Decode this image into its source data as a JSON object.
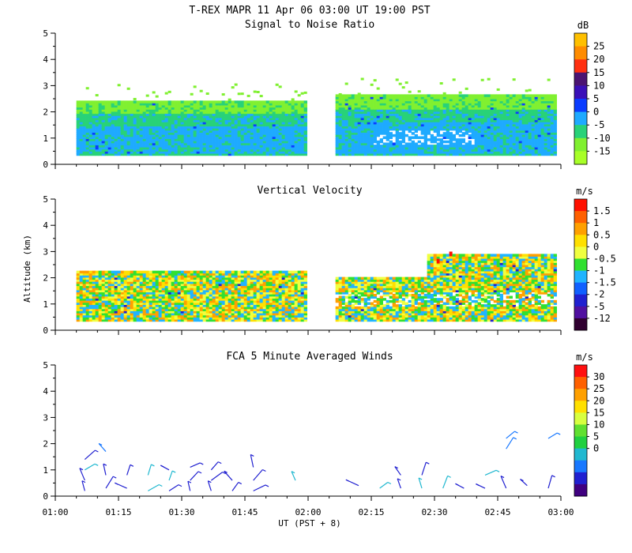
{
  "figure": {
    "title": "T-REX  MAPR 11 Apr 06  03:00 UT  19:00  PST",
    "ylabel": "Altitude (km)",
    "xlabel": "UT  (PST + 8)"
  },
  "chart_data": [
    {
      "type": "heatmap",
      "title": "Signal to Noise Ratio",
      "unit": "dB",
      "xlim": [
        "01:00",
        "03:00"
      ],
      "x_ticks": [
        "01:00",
        "01:15",
        "01:30",
        "01:45",
        "02:00",
        "02:15",
        "02:30",
        "02:45",
        "03:00"
      ],
      "ylim": [
        0,
        5
      ],
      "y_ticks": [
        0,
        1,
        2,
        3,
        4,
        5
      ],
      "colorbar_labels": [
        "25",
        "20",
        "15",
        "10",
        "5",
        "0",
        "-5",
        "-10",
        "-15"
      ],
      "colorbar_colors": [
        "#ffc000",
        "#ff8c00",
        "#ff3010",
        "#4b1472",
        "#3a10b8",
        "#0a3cff",
        "#1eaaff",
        "#28d278",
        "#80f030",
        "#a8ff28"
      ],
      "data_gap_ut": [
        "01:59",
        "02:06"
      ]
    },
    {
      "type": "heatmap",
      "title": "Vertical Velocity",
      "unit": "m/s",
      "xlim": [
        "01:00",
        "03:00"
      ],
      "x_ticks": [
        "01:00",
        "01:15",
        "01:30",
        "01:45",
        "02:00",
        "02:15",
        "02:30",
        "02:45",
        "03:00"
      ],
      "ylim": [
        0,
        5
      ],
      "y_ticks": [
        0,
        1,
        2,
        3,
        4,
        5
      ],
      "colorbar_labels": [
        "1.5",
        "1",
        "0.5",
        "0",
        "-0.5",
        "-1",
        "-1.5",
        "-2",
        "-5",
        "-12"
      ],
      "colorbar_colors": [
        "#ff1000",
        "#ff6000",
        "#ffa000",
        "#ffe000",
        "#f0ff40",
        "#30e030",
        "#20b4ff",
        "#1060ff",
        "#2020d0",
        "#5010a0",
        "#300030"
      ],
      "data_gap_ut": [
        "01:59",
        "02:06"
      ]
    },
    {
      "type": "wind_barbs",
      "title": "FCA 5 Minute Averaged Winds",
      "unit": "m/s",
      "xlim": [
        "01:00",
        "03:00"
      ],
      "x_ticks": [
        "01:00",
        "01:15",
        "01:30",
        "01:45",
        "02:00",
        "02:15",
        "02:30",
        "02:45",
        "03:00"
      ],
      "ylim": [
        0,
        5
      ],
      "y_ticks": [
        0,
        1,
        2,
        3,
        4,
        5
      ],
      "colorbar_labels": [
        "30",
        "25",
        "20",
        "15",
        "10",
        "5",
        "0"
      ],
      "colorbar_colors": [
        "#ff1010",
        "#ff6000",
        "#ffa000",
        "#ffe000",
        "#d8ff40",
        "#60e030",
        "#20d040",
        "#20b8d0",
        "#1878ff",
        "#2020d0",
        "#400080"
      ],
      "barbs": [
        {
          "t": "01:07",
          "z": 0.2
        },
        {
          "t": "01:07",
          "z": 0.6
        },
        {
          "t": "01:07",
          "z": 1.0
        },
        {
          "t": "01:07",
          "z": 1.4
        },
        {
          "t": "01:12",
          "z": 0.3
        },
        {
          "t": "01:12",
          "z": 0.8
        },
        {
          "t": "01:12",
          "z": 1.7
        },
        {
          "t": "01:17",
          "z": 0.3
        },
        {
          "t": "01:17",
          "z": 0.8
        },
        {
          "t": "01:22",
          "z": 0.2
        },
        {
          "t": "01:22",
          "z": 0.8
        },
        {
          "t": "01:27",
          "z": 0.2
        },
        {
          "t": "01:27",
          "z": 0.6
        },
        {
          "t": "01:27",
          "z": 1.0
        },
        {
          "t": "01:32",
          "z": 0.2
        },
        {
          "t": "01:32",
          "z": 0.6
        },
        {
          "t": "01:32",
          "z": 1.1
        },
        {
          "t": "01:37",
          "z": 0.2
        },
        {
          "t": "01:37",
          "z": 0.6
        },
        {
          "t": "01:37",
          "z": 1.0
        },
        {
          "t": "01:42",
          "z": 0.2
        },
        {
          "t": "01:42",
          "z": 0.6
        },
        {
          "t": "01:47",
          "z": 0.2
        },
        {
          "t": "01:47",
          "z": 0.6
        },
        {
          "t": "01:47",
          "z": 1.1
        },
        {
          "t": "01:57",
          "z": 0.6
        },
        {
          "t": "02:12",
          "z": 0.4
        },
        {
          "t": "02:17",
          "z": 0.3
        },
        {
          "t": "02:22",
          "z": 0.3
        },
        {
          "t": "02:22",
          "z": 0.8
        },
        {
          "t": "02:27",
          "z": 0.3
        },
        {
          "t": "02:27",
          "z": 0.8
        },
        {
          "t": "02:32",
          "z": 0.3
        },
        {
          "t": "02:37",
          "z": 0.3
        },
        {
          "t": "02:42",
          "z": 0.3
        },
        {
          "t": "02:42",
          "z": 0.8
        },
        {
          "t": "02:47",
          "z": 0.3
        },
        {
          "t": "02:47",
          "z": 1.8
        },
        {
          "t": "02:47",
          "z": 2.2
        },
        {
          "t": "02:52",
          "z": 0.4
        },
        {
          "t": "02:57",
          "z": 0.3
        },
        {
          "t": "02:57",
          "z": 2.2
        }
      ]
    }
  ]
}
